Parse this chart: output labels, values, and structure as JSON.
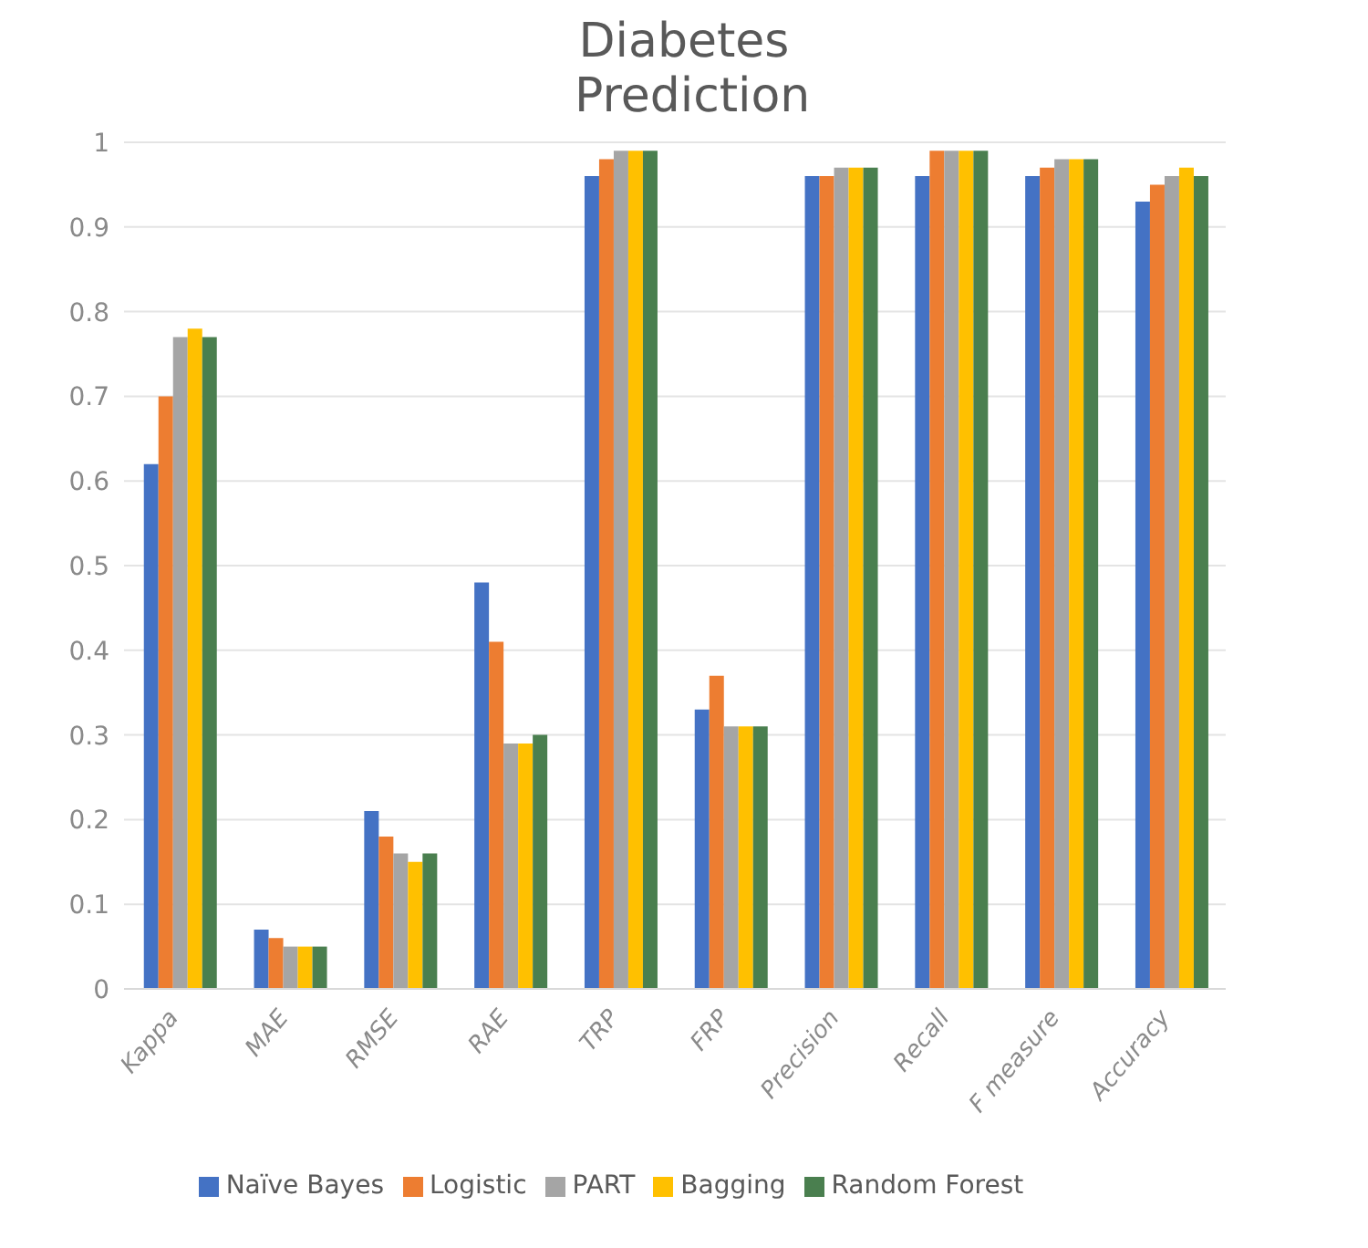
{
  "chart_data": {
    "type": "bar",
    "title": "Diabetes Prediction",
    "categories": [
      "Kappa",
      "MAE",
      "RMSE",
      "RAE",
      "TRP",
      "FRP",
      "Precision",
      "Recall",
      "F measure",
      "Accuracy"
    ],
    "series": [
      {
        "name": "Naïve Bayes",
        "color": "#4472c4",
        "values": [
          0.62,
          0.07,
          0.21,
          0.48,
          0.96,
          0.33,
          0.96,
          0.96,
          0.96,
          0.93
        ]
      },
      {
        "name": "Logistic",
        "color": "#ed7d31",
        "values": [
          0.7,
          0.06,
          0.18,
          0.41,
          0.98,
          0.37,
          0.96,
          0.99,
          0.97,
          0.95
        ]
      },
      {
        "name": "PART",
        "color": "#a5a5a5",
        "values": [
          0.77,
          0.05,
          0.16,
          0.29,
          0.99,
          0.31,
          0.97,
          0.99,
          0.98,
          0.96
        ]
      },
      {
        "name": "Bagging",
        "color": "#ffc000",
        "values": [
          0.78,
          0.05,
          0.15,
          0.29,
          0.99,
          0.31,
          0.97,
          0.99,
          0.98,
          0.97
        ]
      },
      {
        "name": "Random Forest",
        "color": "#4a7f4f",
        "values": [
          0.77,
          0.05,
          0.16,
          0.3,
          0.99,
          0.31,
          0.97,
          0.99,
          0.98,
          0.96
        ]
      }
    ],
    "ylim": [
      0,
      1
    ],
    "yticks": [
      0,
      0.1,
      0.2,
      0.3,
      0.4,
      0.5,
      0.6,
      0.7,
      0.8,
      0.9,
      1
    ],
    "grid": "y",
    "legend": "bottom"
  }
}
